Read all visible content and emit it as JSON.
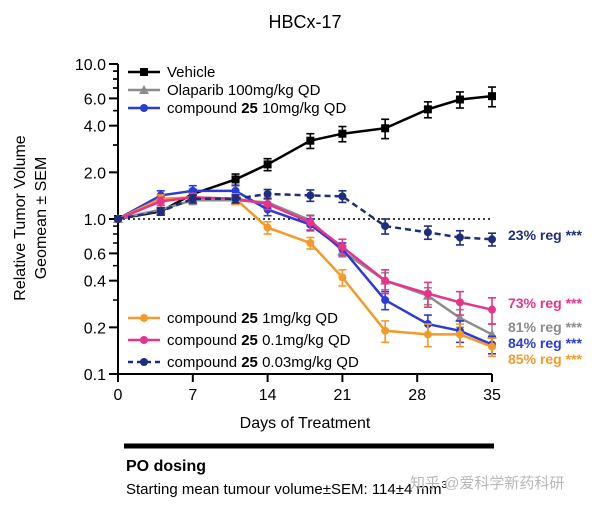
{
  "chart_data": {
    "type": "line",
    "title": "HBCx-17",
    "xlabel": "Days of Treatment",
    "ylabel_lines": [
      "Relative Tumor  Volume",
      "Geomean ± SEM"
    ],
    "yscale": "log",
    "xlim": [
      0,
      35
    ],
    "ylim": [
      0.1,
      10.0
    ],
    "x_ticks": [
      0,
      7,
      14,
      21,
      28,
      35
    ],
    "y_ticks": [
      {
        "value": 0.1,
        "label": "0.1"
      },
      {
        "value": 0.2,
        "label": "0.2"
      },
      {
        "value": 0.4,
        "label": "0.4"
      },
      {
        "value": 0.6,
        "label": "0.6"
      },
      {
        "value": 1.0,
        "label": "1.0"
      },
      {
        "value": 2.0,
        "label": "2.0"
      },
      {
        "value": 4.0,
        "label": "4.0"
      },
      {
        "value": 6.0,
        "label": "6.0"
      },
      {
        "value": 10.0,
        "label": "10.0"
      }
    ],
    "reference_line": {
      "y": 1.0,
      "style": "dotted"
    },
    "series": [
      {
        "name": "Vehicle",
        "color": "#000000",
        "marker": "square",
        "dashed": false,
        "x": [
          0,
          4,
          7,
          11,
          14,
          18,
          21,
          25,
          29,
          32,
          35
        ],
        "y": [
          1.0,
          1.12,
          1.45,
          1.8,
          2.25,
          3.2,
          3.55,
          3.85,
          5.1,
          5.9,
          6.2
        ],
        "err": [
          0.03,
          0.06,
          0.1,
          0.15,
          0.2,
          0.35,
          0.4,
          0.55,
          0.6,
          0.7,
          0.9
        ]
      },
      {
        "name": "Olaparib 100mg/kg QD",
        "color": "#8c8c8c",
        "marker": "triangle",
        "dashed": false,
        "x": [
          0,
          4,
          7,
          11,
          14,
          18,
          21,
          25,
          29,
          32,
          35
        ],
        "y": [
          1.0,
          1.15,
          1.32,
          1.32,
          1.28,
          0.98,
          0.62,
          0.4,
          0.32,
          0.23,
          0.18
        ],
        "err": [
          0.02,
          0.08,
          0.08,
          0.08,
          0.1,
          0.08,
          0.05,
          0.05,
          0.04,
          0.03,
          0.03
        ]
      },
      {
        "name": "compound 25 10mg/kg QD",
        "color": "#2a3bd8",
        "marker": "circle",
        "dashed": false,
        "x": [
          0,
          4,
          7,
          11,
          14,
          18,
          21,
          25,
          29,
          32,
          35
        ],
        "y": [
          1.0,
          1.42,
          1.52,
          1.52,
          1.15,
          0.92,
          0.64,
          0.3,
          0.21,
          0.19,
          0.155
        ],
        "err": [
          0.02,
          0.1,
          0.12,
          0.12,
          0.1,
          0.08,
          0.06,
          0.04,
          0.03,
          0.03,
          0.02
        ]
      },
      {
        "name": "compound 25 1mg/kg QD",
        "color": "#f39a2a",
        "marker": "circle",
        "dashed": false,
        "x": [
          0,
          4,
          7,
          11,
          14,
          18,
          21,
          25,
          29,
          32,
          35
        ],
        "y": [
          1.0,
          1.35,
          1.38,
          1.35,
          0.88,
          0.7,
          0.42,
          0.19,
          0.18,
          0.18,
          0.15
        ],
        "err": [
          0.02,
          0.08,
          0.08,
          0.1,
          0.08,
          0.06,
          0.05,
          0.03,
          0.03,
          0.03,
          0.02
        ]
      },
      {
        "name": "compound 25 0.1mg/kg QD",
        "color": "#e8338a",
        "marker": "circle",
        "dashed": false,
        "x": [
          0,
          4,
          7,
          11,
          14,
          18,
          21,
          25,
          29,
          32,
          35
        ],
        "y": [
          1.0,
          1.3,
          1.38,
          1.35,
          1.25,
          0.95,
          0.66,
          0.4,
          0.33,
          0.29,
          0.26
        ],
        "err": [
          0.02,
          0.08,
          0.08,
          0.08,
          0.1,
          0.1,
          0.08,
          0.07,
          0.06,
          0.05,
          0.05
        ]
      },
      {
        "name": "compound 25 0.03mg/kg QD",
        "color": "#1f2e7a",
        "marker": "circle",
        "dashed": true,
        "x": [
          0,
          4,
          7,
          11,
          14,
          18,
          21,
          25,
          29,
          32,
          35
        ],
        "y": [
          1.0,
          1.12,
          1.35,
          1.35,
          1.45,
          1.42,
          1.4,
          0.9,
          0.82,
          0.76,
          0.74
        ],
        "err": [
          0.02,
          0.06,
          0.08,
          0.08,
          0.1,
          0.12,
          0.12,
          0.1,
          0.08,
          0.08,
          0.07
        ]
      }
    ],
    "annotations": [
      {
        "text": "23% reg ***",
        "color": "#1f2e7a",
        "y": 0.74
      },
      {
        "text": "73% reg ***",
        "color": "#e8338a",
        "y": 0.26
      },
      {
        "text": "81% reg ***",
        "color": "#8c8c8c",
        "y": 0.185
      },
      {
        "text": "84% reg ***",
        "color": "#2a3bd8",
        "y": 0.158
      },
      {
        "text": "85% reg ***",
        "color": "#f39a2a",
        "y": 0.135
      }
    ],
    "legend_top": [
      {
        "text": "Vehicle",
        "bold": "",
        "after": ""
      },
      {
        "text": "Olaparib 100mg/kg QD",
        "bold": "",
        "after": ""
      },
      {
        "text": "compound ",
        "bold": "25",
        "after": " 10mg/kg QD"
      }
    ],
    "legend_bottom": [
      {
        "text": "compound ",
        "bold": "25",
        "after": " 1mg/kg QD"
      },
      {
        "text": "compound ",
        "bold": "25",
        "after": " 0.1mg/kg QD"
      },
      {
        "text": "compound ",
        "bold": "25",
        "after": " 0.03mg/kg QD"
      }
    ]
  },
  "dosing": {
    "title": "PO dosing",
    "subtitle": "Starting mean tumour volume±SEM: 114±4 mm"
  },
  "watermark": "知乎 @爱科学新药科研"
}
